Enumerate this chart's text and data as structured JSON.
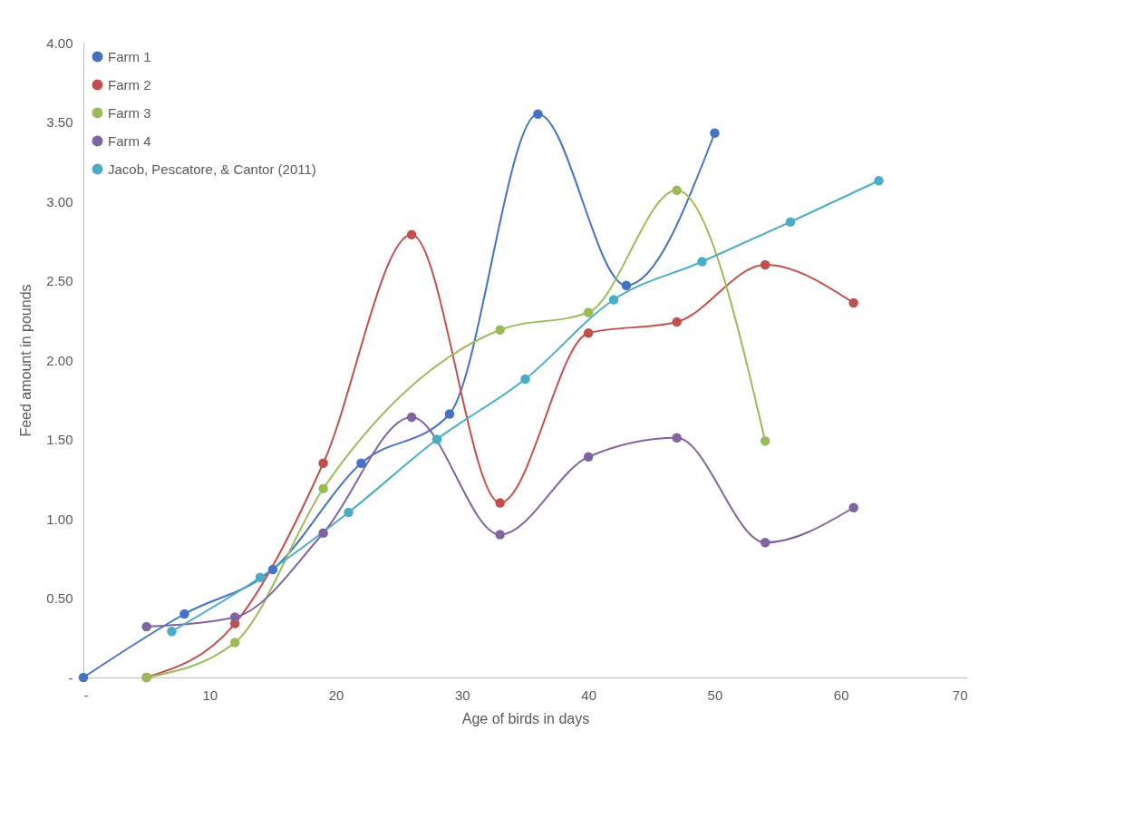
{
  "chart_data": {
    "type": "line",
    "xlabel": "Age of birds  in days",
    "ylabel": "Feed amount in pounds",
    "xlim": [
      0,
      70
    ],
    "ylim": [
      0,
      4
    ],
    "xticks": [
      {
        "value": 0,
        "label": "-"
      },
      10,
      20,
      30,
      40,
      50,
      60,
      70
    ],
    "yticks": [
      {
        "value": 0,
        "label": "-"
      },
      {
        "value": 0.5,
        "label": "0.50"
      },
      {
        "value": 1,
        "label": "1.00"
      },
      {
        "value": 1.5,
        "label": "1.50"
      },
      {
        "value": 2,
        "label": "2.00"
      },
      {
        "value": 2.5,
        "label": "2.50"
      },
      {
        "value": 3,
        "label": "3.00"
      },
      {
        "value": 3.5,
        "label": "3.50"
      },
      {
        "value": 4,
        "label": "4.00"
      }
    ],
    "legend": "top left",
    "marker": "circle",
    "grid": false,
    "series": [
      {
        "name": "Farm 1",
        "color": "#4472c4",
        "x": [
          0,
          8,
          15,
          22,
          29,
          36,
          43,
          50
        ],
        "values": [
          0,
          0.4,
          0.68,
          1.35,
          1.66,
          3.55,
          2.47,
          3.43
        ]
      },
      {
        "name": "Farm 2",
        "color": "#c0504d",
        "x": [
          5,
          12,
          19,
          26,
          33,
          40,
          47,
          54,
          61
        ],
        "values": [
          0,
          0.34,
          1.35,
          2.79,
          1.1,
          2.17,
          2.24,
          2.6,
          2.36
        ]
      },
      {
        "name": "Farm 3",
        "color": "#9bbb59",
        "x": [
          5,
          12,
          19,
          33,
          40,
          47,
          54
        ],
        "values": [
          0,
          0.22,
          1.19,
          2.19,
          2.3,
          3.07,
          1.49
        ]
      },
      {
        "name": "Farm 4",
        "color": "#8064a2",
        "x": [
          5,
          12,
          19,
          26,
          33,
          40,
          47,
          54,
          61
        ],
        "values": [
          0.32,
          0.38,
          0.91,
          1.64,
          0.9,
          1.39,
          1.51,
          0.85,
          1.07
        ]
      },
      {
        "name": "Jacob, Pescatore, & Cantor (2011)",
        "color": "#4bacc6",
        "x": [
          7,
          14,
          21,
          28,
          35,
          42,
          49,
          56,
          63
        ],
        "values": [
          0.29,
          0.63,
          1.04,
          1.5,
          1.88,
          2.38,
          2.62,
          2.87,
          3.13
        ]
      }
    ]
  }
}
